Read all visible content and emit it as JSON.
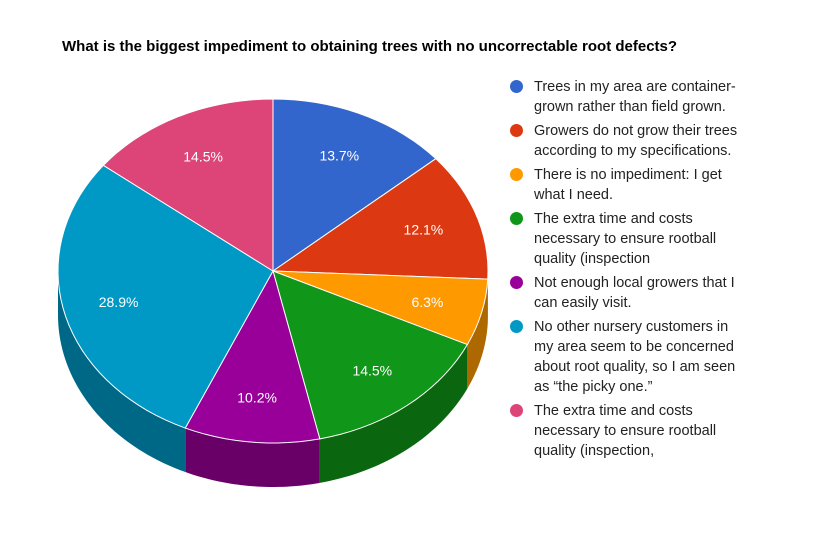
{
  "chart_data": {
    "type": "pie",
    "title": "What is the biggest impediment to obtaining trees with no uncorrectable root defects?",
    "categories": [
      "Trees in my area are container-grown rather than field grown.",
      "Growers do not grow their trees according to my specifications.",
      "There is no impediment: I get what I need.",
      "The extra time and costs necessary to ensure rootball quality (inspection",
      "Not enough local growers that I can easily visit.",
      "No other nursery customers in my area seem to be concerned about root quality, so I am seen as “the picky one.”",
      "The extra time and costs necessary to ensure rootball quality (inspection,"
    ],
    "values": [
      13.7,
      12.1,
      6.3,
      14.5,
      10.2,
      28.9,
      14.5
    ],
    "value_labels": [
      "13.7%",
      "12.1%",
      "6.3%",
      "14.5%",
      "10.2%",
      "28.9%",
      "14.5%"
    ],
    "colors": [
      "#3366cc",
      "#dc3912",
      "#ff9900",
      "#109618",
      "#990099",
      "#0099c6",
      "#dd4477"
    ],
    "legend_position": "right",
    "style": "3d"
  },
  "legend": {
    "items": [
      {
        "lines": [
          "Trees in my area are container-",
          "grown rather than field grown."
        ]
      },
      {
        "lines": [
          "Growers do not grow their trees",
          "according to my specifications."
        ]
      },
      {
        "lines": [
          "There is no impediment: I get",
          "what I need."
        ]
      },
      {
        "lines": [
          "The extra time and costs",
          "necessary to ensure rootball",
          "quality (inspection"
        ]
      },
      {
        "lines": [
          "Not enough local growers that I",
          "can easily visit."
        ]
      },
      {
        "lines": [
          "No other nursery customers in",
          "my area seem to be concerned",
          "about root quality, so I am seen",
          "as “the picky one.”"
        ]
      },
      {
        "lines": [
          "The extra time and costs",
          "necessary to ensure rootball",
          "quality (inspection,"
        ]
      }
    ]
  }
}
